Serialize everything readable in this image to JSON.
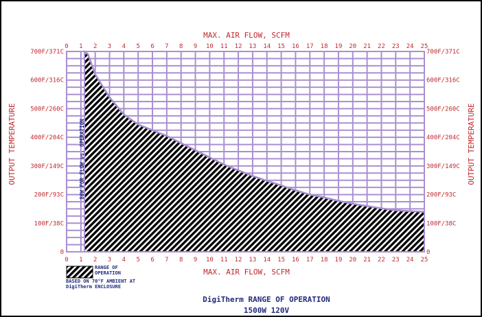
{
  "chart_data": {
    "type": "area",
    "title": "DigiTherm RANGE OF OPERATION",
    "subtitle": "1500W 120V",
    "xlabel_top": "MAX. AIR FLOW, SCFM",
    "xlabel_bottom": "MAX. AIR FLOW, SCFM",
    "ylabel_left": "OUTPUT TEMPERATURE",
    "ylabel_right": "OUTPUT TEMPERATURE",
    "xlim": [
      0,
      25
    ],
    "ylim": [
      0,
      700
    ],
    "x_ticks": [
      "0",
      "1",
      "2",
      "3",
      "4",
      "5",
      "6",
      "7",
      "8",
      "9",
      "10",
      "11",
      "12",
      "13",
      "14",
      "15",
      "16",
      "17",
      "18",
      "19",
      "20",
      "21",
      "22",
      "23",
      "24",
      "25"
    ],
    "y_ticks_left": [
      {
        "value": 0,
        "label": "0"
      },
      {
        "value": 100,
        "label": "100F/38C"
      },
      {
        "value": 200,
        "label": "200F/93C"
      },
      {
        "value": 300,
        "label": "300F/149C"
      },
      {
        "value": 400,
        "label": "400F/204C"
      },
      {
        "value": 500,
        "label": "500F/260C"
      },
      {
        "value": 600,
        "label": "600F/316C"
      },
      {
        "value": 700,
        "label": "700F/371C"
      }
    ],
    "y_ticks_right": [
      {
        "value": 0,
        "label": "0"
      },
      {
        "value": 100,
        "label": "100F/38C"
      },
      {
        "value": 200,
        "label": "200F/93C"
      },
      {
        "value": 300,
        "label": "300F/149C"
      },
      {
        "value": 400,
        "label": "400F/204C"
      },
      {
        "value": 500,
        "label": "500F/260C"
      },
      {
        "value": 600,
        "label": "600F/316C"
      },
      {
        "value": 700,
        "label": "700F/371C"
      }
    ],
    "series": [
      {
        "name": "RANGE OF OPERATION",
        "x": [
          1.25,
          1.5,
          2,
          3,
          4,
          5,
          6,
          7,
          8,
          9,
          10,
          11,
          12,
          13,
          14,
          15,
          16,
          17,
          18,
          19,
          20,
          21,
          22,
          23,
          24,
          25
        ],
        "y": [
          700,
          690,
          620,
          540,
          480,
          445,
          425,
          405,
          380,
          355,
          330,
          305,
          285,
          265,
          248,
          232,
          215,
          200,
          190,
          178,
          168,
          160,
          152,
          145,
          142,
          140
        ]
      }
    ],
    "annotation_vertical": "80W FOR FLOW vs. OPERATION",
    "legend_label": "RANGE OF OPERATION",
    "note": "BASED ON 70°F AMBIENT AT DigiTherm ENCLOSURE",
    "grid": true,
    "colors": {
      "grid": "#a98fd0",
      "axis_text": "#c0282d",
      "fill_hatch": "#000000",
      "title_text": "#1f2a7a",
      "frame": "#000000"
    }
  }
}
